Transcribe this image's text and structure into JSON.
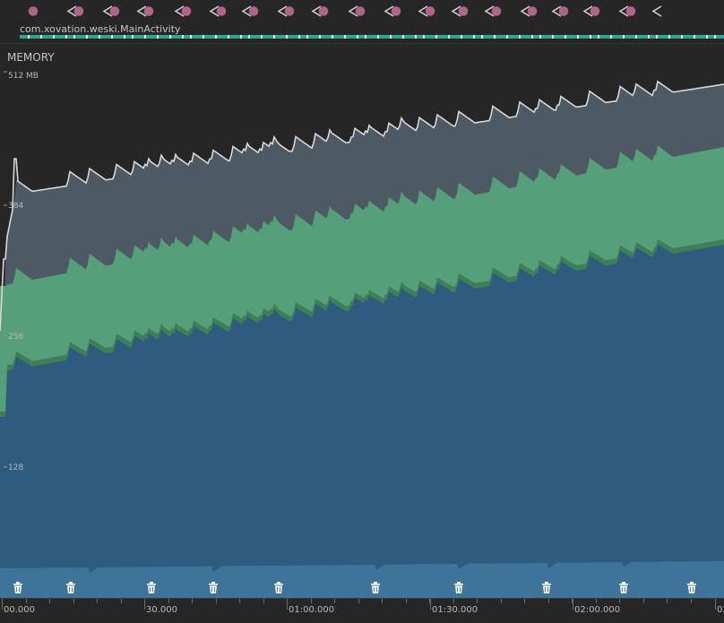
{
  "activity": {
    "name": "com.xovation.weski.MainActivity",
    "events": [
      "dot",
      "back-dot",
      "back-dot",
      "back-dot",
      "back-dot",
      "back-dot",
      "back-dot",
      "back-dot",
      "back-dot",
      "back-dot",
      "back-dot",
      "back-dot",
      "back-dot",
      "back-dot",
      "back-dot",
      "back-dot",
      "back-dot",
      "back-dot",
      "back"
    ]
  },
  "memory": {
    "title": "MEMORY",
    "y_top_label": "512 MB",
    "y_labels": [
      "384",
      "256",
      "128"
    ]
  },
  "time_axis": {
    "labels": [
      "00.000",
      "30.000",
      "01:00.000",
      "01:30.000",
      "02:00.000",
      "02"
    ]
  },
  "gc_events": 10,
  "colors": {
    "background": "#262626",
    "gray_series": "#4d5963",
    "green_series": "#55a07a",
    "green_edge": "#3e7f58",
    "blue_series": "#2f5c7e",
    "light_blue_series": "#3e749a",
    "line": "#d8d8d8",
    "event_dot": "#b0648a",
    "activity_bar": "#2aa792"
  }
}
